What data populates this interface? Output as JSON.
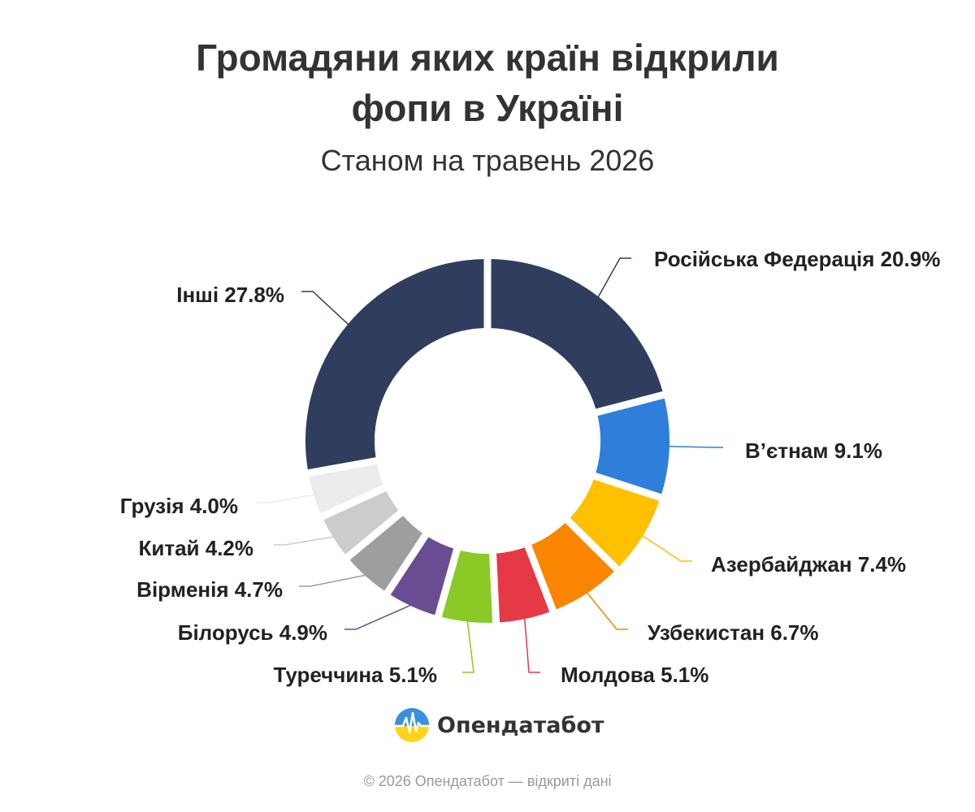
{
  "title_line1": "Громадяни яких країн відкрили",
  "title_line2": "фопи в Україні",
  "subtitle": "Станом на травень 2026",
  "brand": "Опендатабот",
  "footer": "© 2026 Опендатабот — відкриті дані",
  "chart_data": {
    "type": "pie",
    "title": "Громадяни яких країн відкрили фопи в Україні",
    "subtitle": "Станом на травень 2026",
    "donut": true,
    "unit": "%",
    "slices": [
      {
        "label": "Російська Федерація 20.9%",
        "name": "Російська Федерація",
        "value": 20.9,
        "color": "#2f3e5e"
      },
      {
        "label": "В’єтнам 9.1%",
        "name": "В’єтнам",
        "value": 9.1,
        "color": "#2e7fd9"
      },
      {
        "label": "Азербайджан 7.4%",
        "name": "Азербайджан",
        "value": 7.4,
        "color": "#ffc000"
      },
      {
        "label": "Узбекистан 6.7%",
        "name": "Узбекистан",
        "value": 6.7,
        "color": "#f98500"
      },
      {
        "label": "Молдова 5.1%",
        "name": "Молдова",
        "value": 5.1,
        "color": "#e63946"
      },
      {
        "label": "Туреччина 5.1%",
        "name": "Туреччина",
        "value": 5.1,
        "color": "#8ac926"
      },
      {
        "label": "Білорусь 4.9%",
        "name": "Білорусь",
        "value": 4.9,
        "color": "#6a4c93"
      },
      {
        "label": "Вірменія 4.7%",
        "name": "Вірменія",
        "value": 4.7,
        "color": "#9e9e9e"
      },
      {
        "label": "Китай 4.2%",
        "name": "Китай",
        "value": 4.2,
        "color": "#cccccc"
      },
      {
        "label": "Грузія 4.0%",
        "name": "Грузія",
        "value": 4.0,
        "color": "#ececec"
      },
      {
        "label": "Інші 27.8%",
        "name": "Інші",
        "value": 27.8,
        "color": "#2f3e5e"
      }
    ]
  }
}
